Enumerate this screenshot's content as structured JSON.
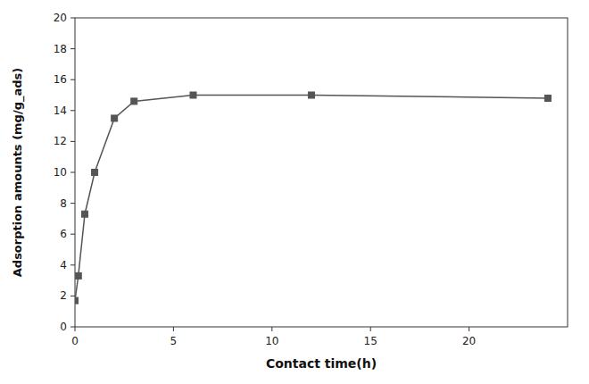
{
  "chart_data": {
    "type": "line",
    "xlabel": "Contact time(h)",
    "ylabel": "Adsorption amounts (mg/g_ads)",
    "x": [
      0,
      0.17,
      0.5,
      1,
      2,
      3,
      6,
      12,
      24
    ],
    "values": [
      1.7,
      3.3,
      7.3,
      10.0,
      13.5,
      14.6,
      15.0,
      15.0,
      14.8
    ],
    "color": "#555555",
    "marker": "square",
    "xlim": [
      0,
      25
    ],
    "ylim": [
      0,
      20
    ],
    "xticks": [
      0,
      5,
      10,
      15,
      20
    ],
    "yticks": [
      0,
      2,
      4,
      6,
      8,
      10,
      12,
      14,
      16,
      18,
      20
    ],
    "grid": false
  }
}
